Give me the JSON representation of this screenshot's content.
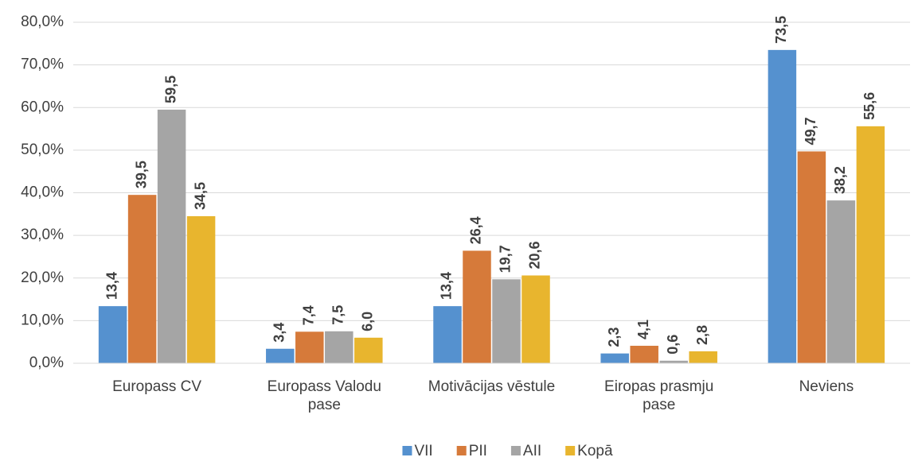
{
  "chart_data": {
    "type": "bar",
    "categories": [
      "Europass CV",
      "Europass Valodu pase",
      "Motivācijas vēstule",
      "Eiropas prasmju pase",
      "Neviens"
    ],
    "series": [
      {
        "name": "VII",
        "color": "#5591cf",
        "values": [
          13.4,
          3.4,
          13.4,
          2.3,
          73.5
        ],
        "value_labels": [
          "13,4",
          "3,4",
          "13,4",
          "2,3",
          "73,5"
        ]
      },
      {
        "name": "PII",
        "color": "#d67a3a",
        "values": [
          39.5,
          7.4,
          26.4,
          4.1,
          49.7
        ],
        "value_labels": [
          "39,5",
          "7,4",
          "26,4",
          "4,1",
          "49,7"
        ]
      },
      {
        "name": "AII",
        "color": "#a5a5a5",
        "values": [
          59.5,
          7.5,
          19.7,
          0.6,
          38.2
        ],
        "value_labels": [
          "59,5",
          "7,5",
          "19,7",
          "0,6",
          "38,2"
        ]
      },
      {
        "name": "Kopā",
        "color": "#e8b52e",
        "values": [
          34.5,
          6.0,
          20.6,
          2.8,
          55.6
        ],
        "value_labels": [
          "34,5",
          "6,0",
          "20,6",
          "2,8",
          "55,6"
        ]
      }
    ],
    "ylim": [
      0,
      80
    ],
    "yticks": [
      {
        "value": 0,
        "label": "0,0%"
      },
      {
        "value": 10,
        "label": "10,0%"
      },
      {
        "value": 20,
        "label": "20,0%"
      },
      {
        "value": 30,
        "label": "30,0%"
      },
      {
        "value": 40,
        "label": "40,0%"
      },
      {
        "value": 50,
        "label": "50,0%"
      },
      {
        "value": 60,
        "label": "60,0%"
      },
      {
        "value": 70,
        "label": "70,0%"
      },
      {
        "value": 80,
        "label": "80,0%"
      }
    ],
    "grid": true,
    "legend": "bottom"
  }
}
